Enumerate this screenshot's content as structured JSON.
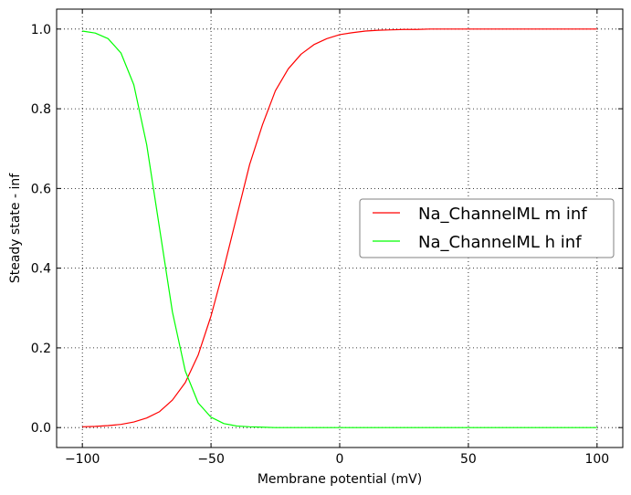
{
  "chart_data": {
    "type": "line",
    "xlabel": "Membrane potential (mV)",
    "ylabel": "Steady state - inf",
    "xlim": [
      -110,
      110
    ],
    "ylim": [
      -0.05,
      1.05
    ],
    "xticks": [
      -100,
      -50,
      0,
      50,
      100
    ],
    "xtick_labels": [
      "−100",
      "−50",
      "0",
      "50",
      "100"
    ],
    "yticks": [
      0.0,
      0.2,
      0.4,
      0.6,
      0.8,
      1.0
    ],
    "ytick_labels": [
      "0.0",
      "0.2",
      "0.4",
      "0.6",
      "0.8",
      "1.0"
    ],
    "grid": true,
    "legend_position": "center-right",
    "x": [
      -100,
      -95,
      -90,
      -85,
      -80,
      -75,
      -70,
      -65,
      -60,
      -55,
      -50,
      -45,
      -40,
      -35,
      -30,
      -25,
      -20,
      -15,
      -10,
      -5,
      0,
      5,
      10,
      15,
      20,
      25,
      30,
      35,
      40,
      45,
      50,
      55,
      60,
      65,
      70,
      75,
      80,
      85,
      90,
      95,
      100
    ],
    "series": [
      {
        "name": "Na_ChannelML m inf",
        "color": "#ff0000",
        "values": [
          0.002,
          0.003,
          0.005,
          0.008,
          0.014,
          0.024,
          0.04,
          0.069,
          0.113,
          0.182,
          0.28,
          0.4,
          0.53,
          0.66,
          0.76,
          0.845,
          0.9,
          0.937,
          0.961,
          0.976,
          0.986,
          0.991,
          0.995,
          0.997,
          0.998,
          0.999,
          0.999,
          1.0,
          1.0,
          1.0,
          1.0,
          1.0,
          1.0,
          1.0,
          1.0,
          1.0,
          1.0,
          1.0,
          1.0,
          1.0,
          1.0
        ]
      },
      {
        "name": "Na_ChannelML h inf",
        "color": "#00ff00",
        "values": [
          0.995,
          0.99,
          0.976,
          0.94,
          0.86,
          0.71,
          0.5,
          0.29,
          0.142,
          0.062,
          0.026,
          0.01,
          0.004,
          0.002,
          0.001,
          0.0,
          0.0,
          0.0,
          0.0,
          0.0,
          0.0,
          0.0,
          0.0,
          0.0,
          0.0,
          0.0,
          0.0,
          0.0,
          0.0,
          0.0,
          0.0,
          0.0,
          0.0,
          0.0,
          0.0,
          0.0,
          0.0,
          0.0,
          0.0,
          0.0,
          0.0
        ]
      }
    ]
  }
}
